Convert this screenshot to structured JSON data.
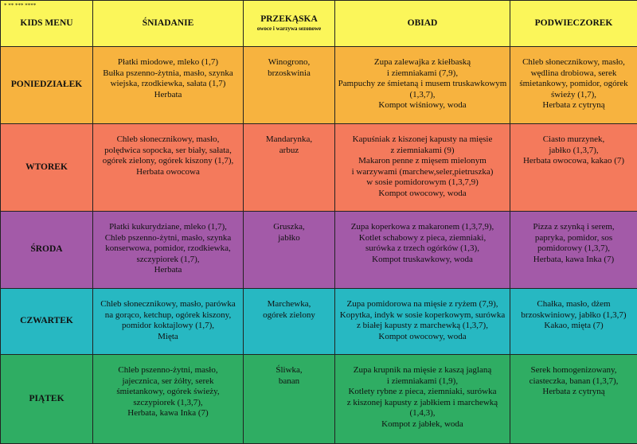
{
  "header": {
    "note": "* ** *** ****",
    "columns": [
      "KIDS MENU",
      "ŚNIADANIE",
      "PRZEKĄSKA",
      "OBIAD",
      "PODWIECZOREK"
    ],
    "snack_subtitle": "owoce i warzywa sezonowe"
  },
  "rows": [
    {
      "day": "PONIEDZIAŁEK",
      "cells": [
        [
          "Płatki miodowe, mleko (1,7)",
          "Bułka pszenno-żytnia, masło, szynka",
          "wiejska, rzodkiewka, sałata (1,7)",
          "Herbata"
        ],
        [
          "Winogrono,",
          "brzoskwinia"
        ],
        [
          "Zupa zalewajka z kiełbaską",
          "i ziemniakami (7,9),",
          "Pampuchy ze śmietaną i musem truskawkowym",
          "(1,3,7),",
          "Kompot wiśniowy, woda"
        ],
        [
          "Chleb słonecznikowy, masło,",
          "wędlina drobiowa, serek",
          "śmietankowy, pomidor, ogórek",
          "świeży (1,7),",
          "Herbata z cytryną"
        ]
      ]
    },
    {
      "day": "WTOREK",
      "cells": [
        [
          "Chleb słonecznikowy, masło,",
          "polędwica sopocka, ser biały, sałata,",
          "ogórek zielony, ogórek kiszony (1,7),",
          "Herbata owocowa"
        ],
        [
          "Mandarynka,",
          "arbuz"
        ],
        [
          "Kapuśniak z kiszonej kapusty na mięsie",
          "z ziemniakami (9)",
          "Makaron penne z mięsem mielonym",
          "i warzywami (marchew,seler,pietruszka)",
          "w sosie pomidorowym (1,3,7,9)",
          "Kompot owocowy, woda"
        ],
        [
          "Ciasto murzynek,",
          "jabłko (1,3,7),",
          "Herbata owocowa, kakao (7)"
        ]
      ]
    },
    {
      "day": "ŚRODA",
      "cells": [
        [
          "Płatki kukurydziane, mleko (1,7),",
          "Chleb pszenno-żytni, masło, szynka",
          "konserwowa, pomidor, rzodkiewka,",
          "szczypiorek (1,7),",
          "Herbata"
        ],
        [
          "Gruszka,",
          "jabłko"
        ],
        [
          "Zupa koperkowa z makaronem  (1,3,7,9),",
          "Kotlet schabowy z pieca, ziemniaki,",
          "surówka z trzech ogórków (1,3),",
          "Kompot truskawkowy, woda"
        ],
        [
          "Pizza z szynką i serem,",
          "papryka, pomidor, sos",
          "pomidorowy (1,3,7),",
          "Herbata, kawa Inka (7)"
        ]
      ]
    },
    {
      "day": "CZWARTEK",
      "cells": [
        [
          "Chleb słonecznikowy, masło, parówka",
          "na gorąco, ketchup, ogórek kiszony,",
          "pomidor koktajlowy (1,7),",
          "Mięta"
        ],
        [
          "Marchewka,",
          "ogórek zielony"
        ],
        [
          "Zupa pomidorowa na mięsie z ryżem (7,9),",
          "Kopytka, indyk w sosie koperkowym, surówka",
          "z białej kapusty z marchewką (1,3,7),",
          "Kompot owocowy, woda"
        ],
        [
          "Chałka, masło, dżem",
          "brzoskwiniowy, jabłko (1,3,7)",
          "Kakao, mięta (7)"
        ]
      ]
    },
    {
      "day": "PIĄTEK",
      "cells": [
        [
          "Chleb pszenno-żytni, masło,",
          "jajecznica, ser żółty, serek",
          "śmietankowy, ogórek świeży,",
          "szczypiorek (1,3,7),",
          "Herbata, kawa Inka (7)"
        ],
        [
          "Śliwka,",
          "banan"
        ],
        [
          "Zupa krupnik na mięsie z kaszą jaglaną",
          "i ziemniakami (1,9),",
          "Kotlety rybne z pieca, ziemniaki, surówka",
          "z kiszonej kapusty z jabłkiem i marchewką",
          "(1,4,3),",
          "Kompot z jabłek, woda"
        ],
        [
          "Serek homogenizowany,",
          "ciasteczka, banan (1,3,7),",
          "Herbata z cytryną"
        ]
      ]
    }
  ]
}
